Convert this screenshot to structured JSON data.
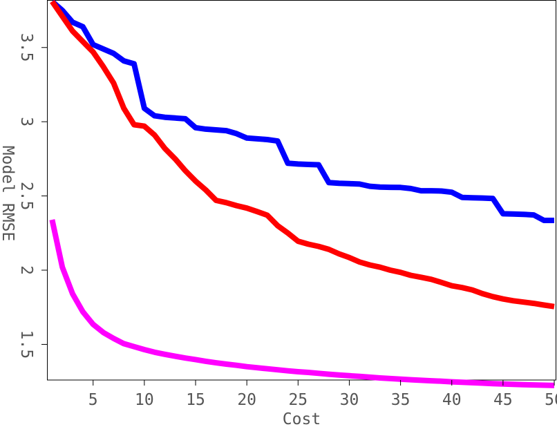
{
  "chart_data": {
    "type": "line",
    "title": "",
    "xlabel": "Cost",
    "ylabel": "Model RMSE",
    "xlim": [
      0.5,
      50.2
    ],
    "ylim": [
      1.26,
      3.82
    ],
    "x_ticks": [
      5,
      10,
      15,
      20,
      25,
      30,
      35,
      40,
      45,
      50
    ],
    "x_tick_labels": [
      "5",
      "10",
      "15",
      "20",
      "25",
      "30",
      "35",
      "40",
      "45",
      "50"
    ],
    "y_ticks": [
      1.5,
      2,
      2.5,
      3,
      3.5
    ],
    "y_tick_labels": [
      "1.5",
      "2",
      "2.5",
      "3",
      "3.5"
    ],
    "grid": false,
    "legend": "none",
    "x": [
      1,
      2,
      3,
      4,
      5,
      6,
      7,
      8,
      9,
      10,
      11,
      12,
      13,
      14,
      15,
      16,
      17,
      18,
      19,
      20,
      21,
      22,
      23,
      24,
      25,
      26,
      27,
      28,
      29,
      30,
      31,
      32,
      33,
      34,
      35,
      36,
      37,
      38,
      39,
      40,
      41,
      42,
      43,
      44,
      45,
      46,
      47,
      48,
      49,
      50
    ],
    "series": [
      {
        "color": "#0000ff",
        "values": [
          3.81,
          3.75,
          3.67,
          3.64,
          3.52,
          3.49,
          3.46,
          3.41,
          3.39,
          3.09,
          3.04,
          3.03,
          3.025,
          3.02,
          2.96,
          2.95,
          2.945,
          2.94,
          2.92,
          2.89,
          2.885,
          2.88,
          2.87,
          2.72,
          2.715,
          2.712,
          2.71,
          2.59,
          2.585,
          2.583,
          2.58,
          2.565,
          2.56,
          2.558,
          2.557,
          2.55,
          2.535,
          2.535,
          2.533,
          2.525,
          2.49,
          2.488,
          2.486,
          2.483,
          2.38,
          2.378,
          2.376,
          2.372,
          2.335,
          2.335
        ]
      },
      {
        "color": "#ff0000",
        "values": [
          3.81,
          3.71,
          3.61,
          3.54,
          3.47,
          3.37,
          3.26,
          3.09,
          2.98,
          2.97,
          2.91,
          2.82,
          2.75,
          2.67,
          2.6,
          2.54,
          2.47,
          2.455,
          2.435,
          2.418,
          2.395,
          2.37,
          2.3,
          2.25,
          2.195,
          2.175,
          2.16,
          2.14,
          2.11,
          2.085,
          2.055,
          2.035,
          2.02,
          2.0,
          1.985,
          1.965,
          1.952,
          1.938,
          1.917,
          1.895,
          1.883,
          1.867,
          1.842,
          1.822,
          1.806,
          1.794,
          1.785,
          1.776,
          1.765,
          1.755
        ]
      },
      {
        "color": "#ff00ff",
        "values": [
          2.34,
          2.02,
          1.84,
          1.72,
          1.635,
          1.58,
          1.54,
          1.505,
          1.485,
          1.465,
          1.447,
          1.433,
          1.42,
          1.408,
          1.398,
          1.386,
          1.376,
          1.367,
          1.359,
          1.35,
          1.343,
          1.336,
          1.329,
          1.322,
          1.316,
          1.311,
          1.305,
          1.299,
          1.294,
          1.289,
          1.284,
          1.279,
          1.274,
          1.27,
          1.266,
          1.262,
          1.258,
          1.255,
          1.252,
          1.248,
          1.245,
          1.242,
          1.239,
          1.236,
          1.233,
          1.231,
          1.229,
          1.227,
          1.225,
          1.223
        ]
      }
    ]
  }
}
